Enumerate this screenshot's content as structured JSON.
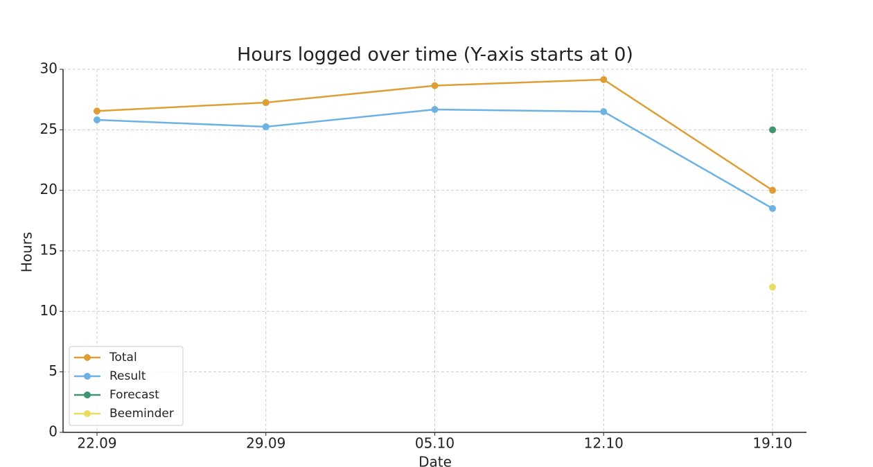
{
  "chart_data": {
    "type": "line",
    "title": "Hours logged over time (Y-axis starts at 0)",
    "x_label": "Date",
    "y_label": "Hours",
    "categories": [
      "22.09",
      "29.09",
      "05.10",
      "12.10",
      "19.10"
    ],
    "series": [
      {
        "name": "Total",
        "color": "#dd9f35",
        "values": [
          26.55,
          27.25,
          28.65,
          29.15,
          20.0
        ]
      },
      {
        "name": "Result",
        "color": "#6cb2e2",
        "values": [
          25.82,
          25.25,
          26.68,
          26.5,
          18.5
        ]
      },
      {
        "name": "Forecast",
        "color": "#3f9670",
        "values": [
          null,
          null,
          null,
          null,
          25
        ]
      },
      {
        "name": "Beeminder",
        "color": "#e9dc62",
        "values": [
          null,
          null,
          null,
          null,
          12
        ]
      }
    ],
    "ylim": [
      0,
      30
    ],
    "yticks": [
      0,
      5,
      10,
      15,
      20,
      25,
      30
    ],
    "grid": true,
    "legend": "lower left"
  }
}
